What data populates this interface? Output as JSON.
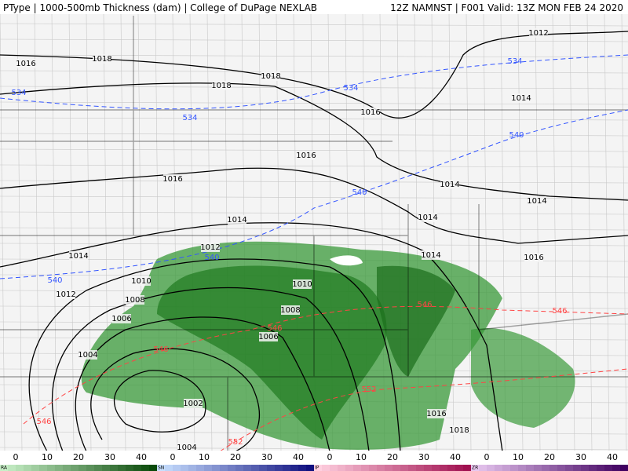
{
  "header": {
    "left": "PType | 1000-500mb Thickness (dam) | College of DuPage NEXLAB",
    "right": "12Z NAMNST | F001 Valid: 13Z MON FEB 24 2020"
  },
  "isobar_labels": [
    1012,
    1016,
    1018,
    1018,
    1018,
    1016,
    1016,
    1016,
    1014,
    1014,
    1014,
    1014,
    1014,
    1014,
    1014,
    1016,
    1012,
    1010,
    1012,
    1010,
    1008,
    1008,
    1006,
    1006,
    1004,
    1002,
    1004,
    1016,
    1018
  ],
  "thickness_labels": {
    "blue": [
      534,
      534,
      534,
      534,
      540,
      540,
      540,
      540
    ],
    "red": [
      546,
      546,
      546,
      546,
      546,
      552,
      552
    ]
  },
  "colorbar": [
    {
      "name": "RA",
      "ticks": [
        0,
        10,
        20,
        30,
        40
      ]
    },
    {
      "name": "SN",
      "ticks": [
        0,
        10,
        20,
        30,
        40
      ]
    },
    {
      "name": "IP",
      "ticks": [
        0,
        10,
        20,
        30,
        40
      ]
    },
    {
      "name": "ZR",
      "ticks": [
        0,
        10,
        20,
        30,
        40
      ]
    }
  ]
}
